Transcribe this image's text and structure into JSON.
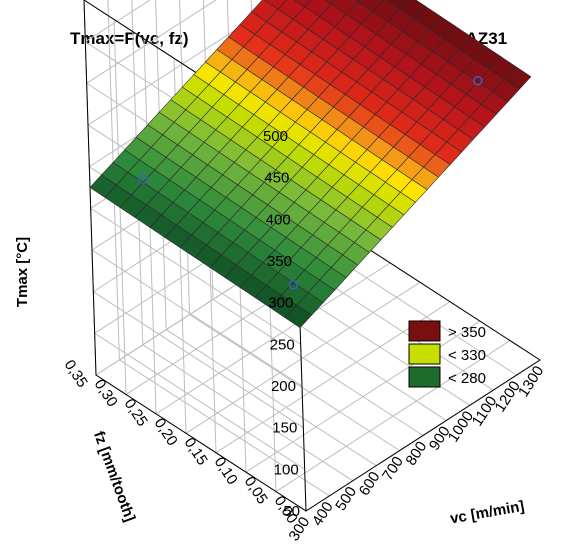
{
  "chart_data": {
    "type": "surface3d",
    "title_left": "Tmax=F(vc, fz)",
    "title_right": "TiAlN_AZ31",
    "zlabel": "Tmax [°C]",
    "ylabel": "fz [mm/tooth]",
    "xlabel": "vc [m/min]",
    "x_ticks": [
      "300",
      "400",
      "500",
      "600",
      "700",
      "800",
      "900",
      "1000",
      "1100",
      "1200",
      "1300"
    ],
    "y_ticks": [
      "0,00",
      "0,05",
      "0,10",
      "0,15",
      "0,20",
      "0,25",
      "0,30",
      "0,35"
    ],
    "z_ticks": [
      "50",
      "100",
      "150",
      "200",
      "250",
      "300",
      "350",
      "400",
      "450",
      "500"
    ],
    "xlim": [
      300,
      1300
    ],
    "ylim": [
      0,
      0.35
    ],
    "zlim": [
      50,
      500
    ],
    "grid": true,
    "surface": {
      "Tmax_at_vc300": 270,
      "Tmax_at_vc1300": 390,
      "fz_effect": 5
    },
    "points": [
      {
        "vc": 400,
        "fz": 0.05,
        "Tmax": 280
      },
      {
        "vc": 400,
        "fz": 0.3,
        "Tmax": 290
      },
      {
        "vc": 1200,
        "fz": 0.05,
        "Tmax": 380
      },
      {
        "vc": 1200,
        "fz": 0.3,
        "Tmax": 390
      }
    ],
    "legend": {
      "position": "right",
      "entries": [
        {
          "label": "> 350",
          "color": "#7a0f0f"
        },
        {
          "label": "< 330",
          "color": "#c6df00"
        },
        {
          "label": "< 280",
          "color": "#1e6b2e"
        }
      ]
    },
    "colors": {
      "grid_line": "#bdbdbd",
      "mesh_line": "#2a2a2a",
      "point": "#3a5fcd"
    }
  }
}
